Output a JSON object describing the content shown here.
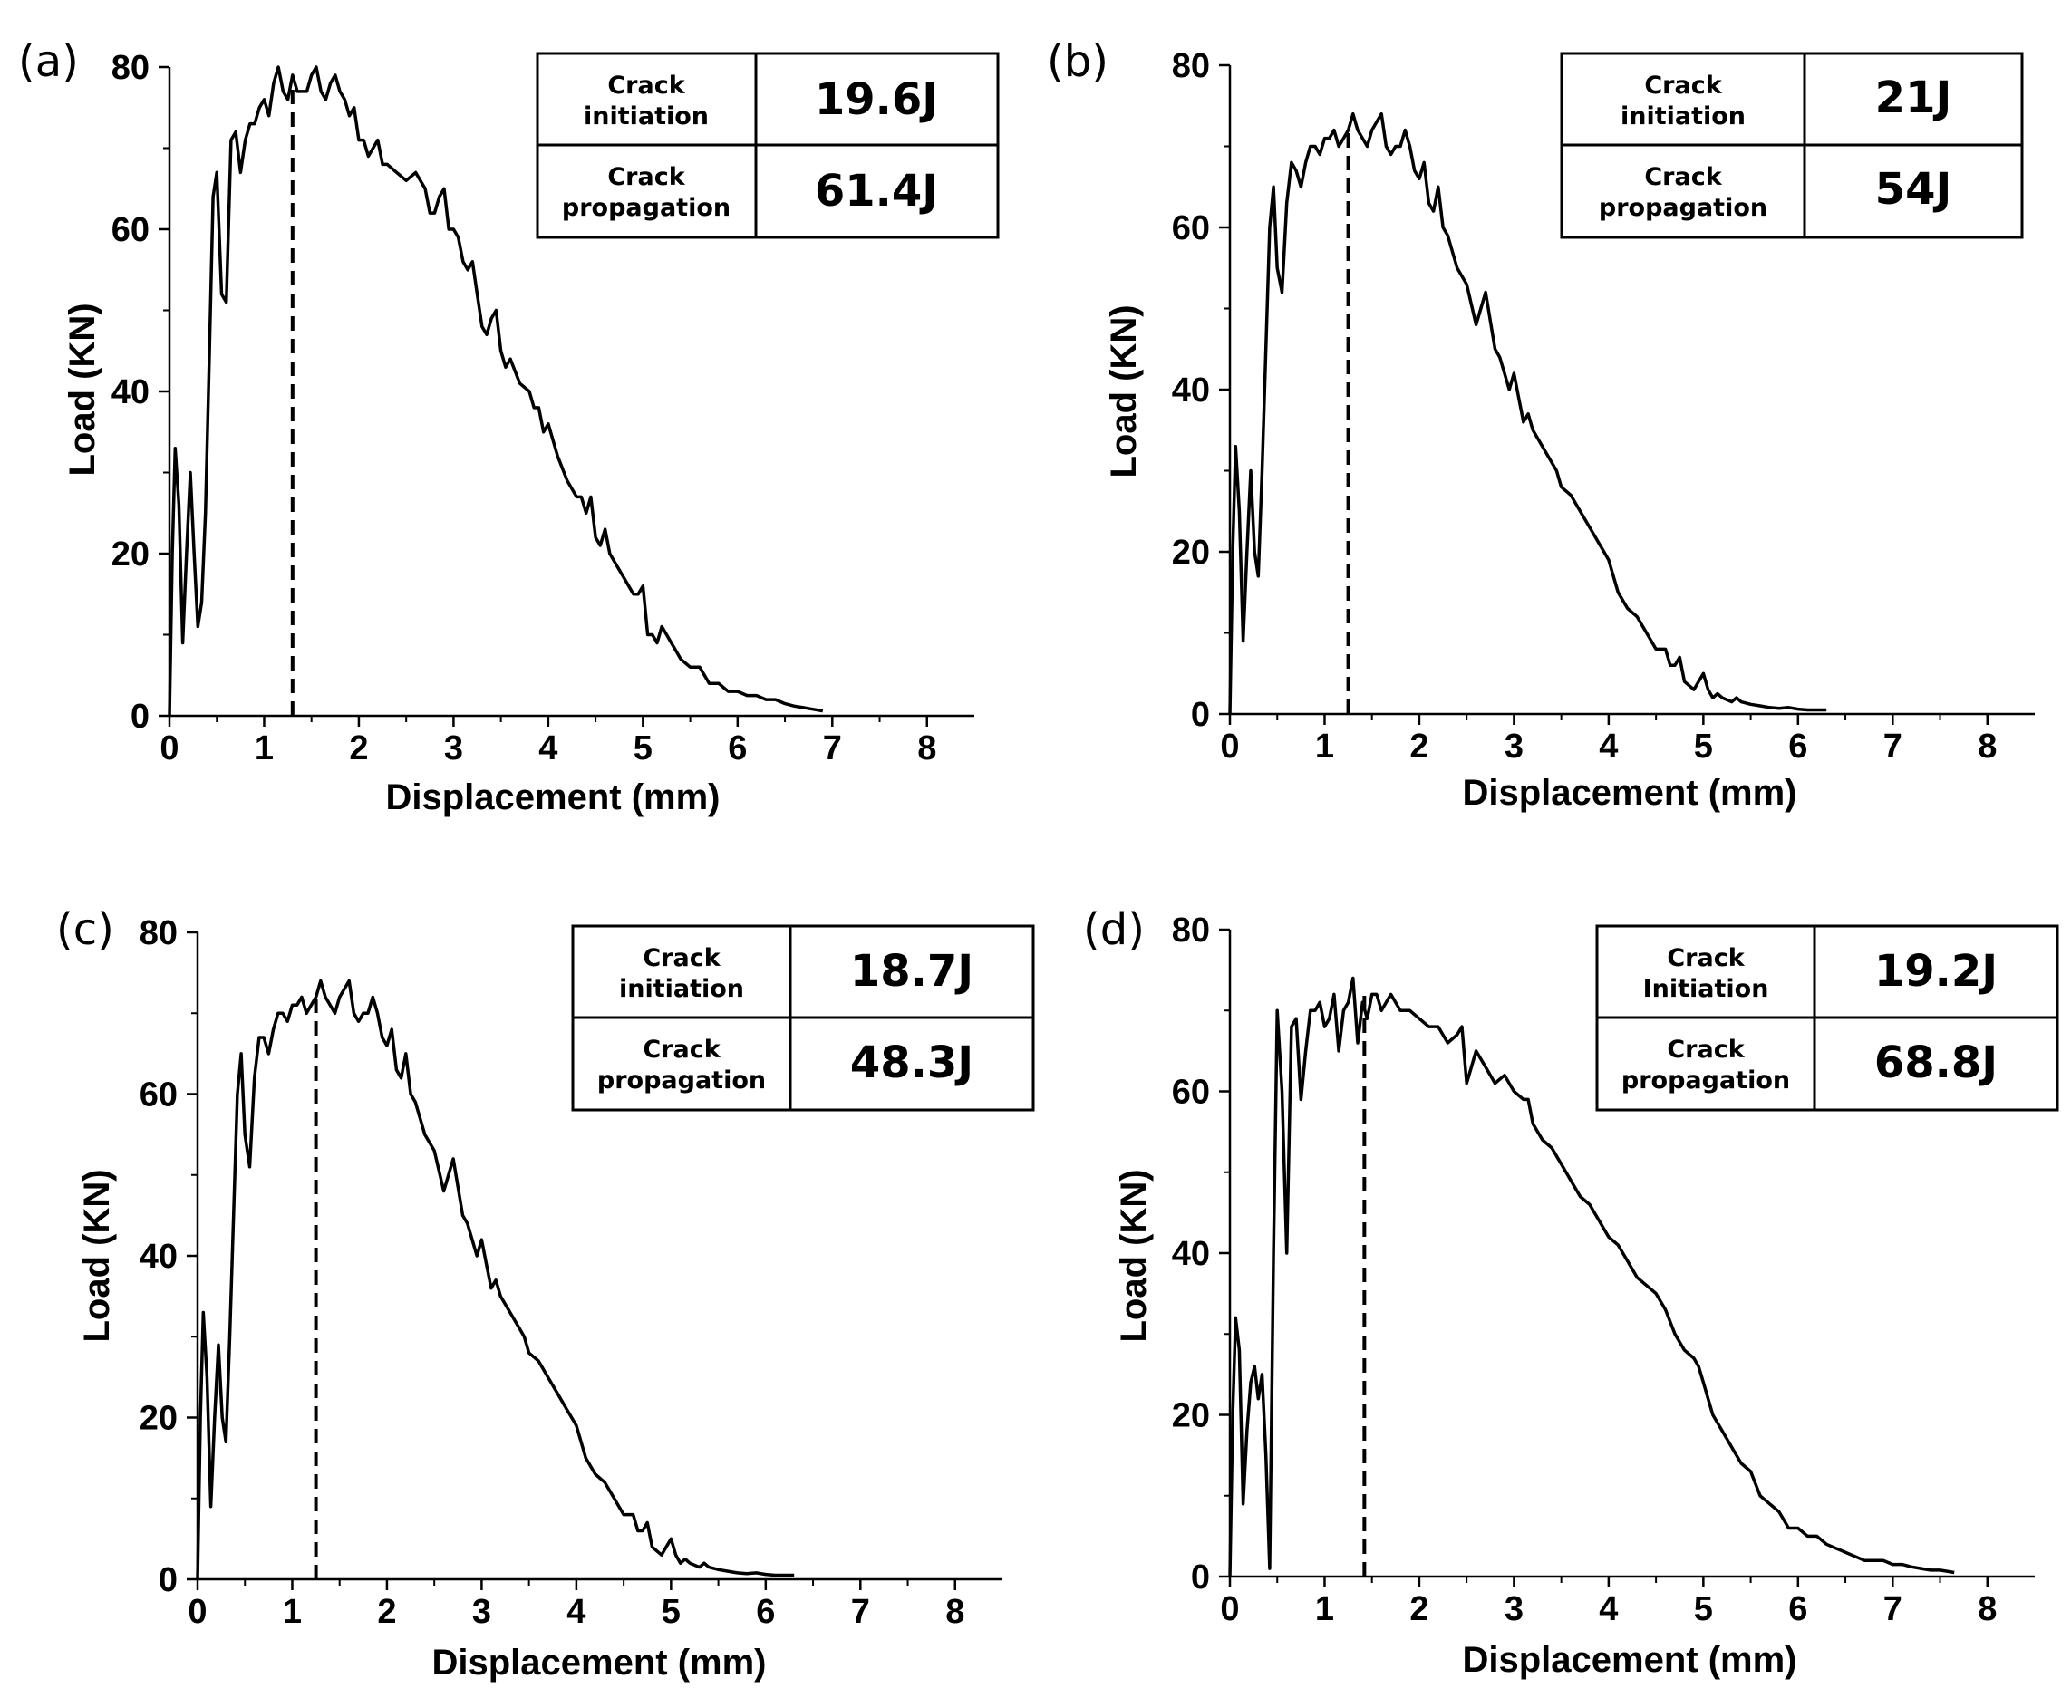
{
  "chart_data": [
    {
      "panel": "(a)",
      "type": "line",
      "xlabel": "Displacement (mm)",
      "ylabel": "Load (KN)",
      "xlim": [
        0,
        8.5
      ],
      "ylim": [
        0,
        80
      ],
      "xticks": [
        0,
        1,
        2,
        3,
        4,
        5,
        6,
        7,
        8
      ],
      "yticks": [
        0,
        20,
        40,
        60,
        80
      ],
      "crack_initiation_displacement": 1.3,
      "table": {
        "row1_label": "Crack initiation",
        "row1_value": "19.6J",
        "row2_label": "Crack propagation",
        "row2_value": "61.4J"
      },
      "series": [
        {
          "name": "Load",
          "x": [
            0,
            0.03,
            0.06,
            0.1,
            0.14,
            0.18,
            0.22,
            0.26,
            0.3,
            0.34,
            0.38,
            0.42,
            0.46,
            0.5,
            0.55,
            0.6,
            0.65,
            0.7,
            0.75,
            0.8,
            0.85,
            0.9,
            0.95,
            1.0,
            1.05,
            1.1,
            1.15,
            1.2,
            1.25,
            1.3,
            1.35,
            1.4,
            1.45,
            1.5,
            1.55,
            1.6,
            1.65,
            1.7,
            1.75,
            1.8,
            1.85,
            1.9,
            1.95,
            2.0,
            2.05,
            2.1,
            2.15,
            2.2,
            2.25,
            2.3,
            2.4,
            2.5,
            2.6,
            2.65,
            2.7,
            2.75,
            2.8,
            2.85,
            2.9,
            2.95,
            3.0,
            3.05,
            3.1,
            3.15,
            3.2,
            3.25,
            3.3,
            3.35,
            3.4,
            3.45,
            3.5,
            3.55,
            3.6,
            3.7,
            3.8,
            3.85,
            3.9,
            3.95,
            4.0,
            4.05,
            4.1,
            4.2,
            4.3,
            4.35,
            4.4,
            4.45,
            4.5,
            4.55,
            4.6,
            4.65,
            4.7,
            4.8,
            4.9,
            4.95,
            5.0,
            5.05,
            5.1,
            5.15,
            5.2,
            5.25,
            5.3,
            5.4,
            5.5,
            5.55,
            5.6,
            5.65,
            5.7,
            5.75,
            5.8,
            5.9,
            6.0,
            6.1,
            6.2,
            6.3,
            6.4,
            6.5,
            6.6,
            6.7,
            6.8,
            6.9
          ],
          "y": [
            0,
            20,
            33,
            26,
            9,
            20,
            30,
            20,
            11,
            14,
            25,
            44,
            64,
            67,
            52,
            51,
            71,
            72,
            67,
            71,
            73,
            73,
            75,
            76,
            74,
            78,
            80,
            77,
            76,
            79,
            77,
            77,
            77,
            79,
            80,
            77,
            76,
            78,
            79,
            77,
            76,
            74,
            75,
            71,
            71,
            69,
            70,
            71,
            68,
            68,
            67,
            66,
            67,
            66,
            65,
            62,
            62,
            64,
            65,
            60,
            60,
            59,
            56,
            55,
            56,
            52,
            48,
            47,
            49,
            50,
            45,
            43,
            44,
            41,
            40,
            38,
            38,
            35,
            36,
            34,
            32,
            29,
            27,
            27,
            25,
            27,
            22,
            21,
            23,
            20,
            19,
            17,
            15,
            15,
            16,
            10,
            10,
            9,
            11,
            10,
            9,
            7,
            6,
            6,
            6,
            5,
            4,
            4,
            4,
            3,
            3,
            2.5,
            2.5,
            2,
            2,
            1.5,
            1.2,
            1,
            0.8,
            0.6
          ]
        }
      ]
    },
    {
      "panel": "(b)",
      "type": "line",
      "xlabel": "Displacement (mm)",
      "ylabel": "Load (KN)",
      "xlim": [
        0,
        8.5
      ],
      "ylim": [
        0,
        80
      ],
      "xticks": [
        0,
        1,
        2,
        3,
        4,
        5,
        6,
        7,
        8
      ],
      "yticks": [
        0,
        20,
        40,
        60,
        80
      ],
      "crack_initiation_displacement": 1.25,
      "table": {
        "row1_label": "Crack initiation",
        "row1_value": "21J",
        "row2_label": "Crack propagation",
        "row2_value": "54J"
      },
      "series": [
        {
          "name": "Load",
          "x": [
            0,
            0.03,
            0.06,
            0.1,
            0.14,
            0.18,
            0.22,
            0.26,
            0.3,
            0.34,
            0.38,
            0.42,
            0.46,
            0.5,
            0.55,
            0.6,
            0.65,
            0.7,
            0.75,
            0.8,
            0.85,
            0.9,
            0.95,
            1.0,
            1.05,
            1.1,
            1.15,
            1.2,
            1.25,
            1.3,
            1.35,
            1.4,
            1.45,
            1.5,
            1.55,
            1.6,
            1.65,
            1.7,
            1.75,
            1.8,
            1.85,
            1.9,
            1.95,
            2.0,
            2.05,
            2.1,
            2.15,
            2.2,
            2.25,
            2.3,
            2.4,
            2.5,
            2.6,
            2.7,
            2.8,
            2.85,
            2.9,
            2.95,
            3.0,
            3.05,
            3.1,
            3.15,
            3.2,
            3.3,
            3.4,
            3.45,
            3.5,
            3.6,
            3.7,
            3.8,
            3.9,
            3.95,
            4.0,
            4.05,
            4.1,
            4.2,
            4.3,
            4.4,
            4.5,
            4.6,
            4.65,
            4.7,
            4.75,
            4.8,
            4.9,
            4.95,
            5.0,
            5.05,
            5.1,
            5.15,
            5.2,
            5.3,
            5.35,
            5.4,
            5.5,
            5.6,
            5.7,
            5.8,
            5.9,
            6.0,
            6.1,
            6.2,
            6.3
          ],
          "y": [
            0,
            20,
            33,
            25,
            9,
            20,
            30,
            20,
            17,
            30,
            45,
            60,
            65,
            55,
            52,
            63,
            68,
            67,
            65,
            68,
            70,
            70,
            69,
            71,
            71,
            72,
            70,
            71,
            72,
            74,
            72,
            71,
            70,
            72,
            73,
            74,
            70,
            69,
            70,
            70,
            72,
            70,
            67,
            66,
            68,
            63,
            62,
            65,
            60,
            59,
            55,
            53,
            48,
            52,
            45,
            44,
            42,
            40,
            42,
            39,
            36,
            37,
            35,
            33,
            31,
            30,
            28,
            27,
            25,
            23,
            21,
            20,
            19,
            17,
            15,
            13,
            12,
            10,
            8,
            8,
            6,
            6,
            7,
            4,
            3,
            4,
            5,
            3,
            2,
            2.5,
            2,
            1.5,
            2,
            1.5,
            1.2,
            1,
            0.8,
            0.7,
            0.8,
            0.6,
            0.5,
            0.5,
            0.5
          ]
        }
      ]
    },
    {
      "panel": "(c)",
      "type": "line",
      "xlabel": "Displacement (mm)",
      "ylabel": "Load (KN)",
      "xlim": [
        0,
        8.5
      ],
      "ylim": [
        0,
        80
      ],
      "xticks": [
        0,
        1,
        2,
        3,
        4,
        5,
        6,
        7,
        8
      ],
      "yticks": [
        0,
        20,
        40,
        60,
        80
      ],
      "crack_initiation_displacement": 1.25,
      "table": {
        "row1_label": "Crack initiation",
        "row1_value": "18.7J",
        "row2_label": "Crack propagation",
        "row2_value": "48.3J"
      },
      "series": [
        {
          "name": "Load",
          "x": [
            0,
            0.03,
            0.06,
            0.1,
            0.14,
            0.18,
            0.22,
            0.26,
            0.3,
            0.34,
            0.38,
            0.42,
            0.46,
            0.5,
            0.55,
            0.6,
            0.65,
            0.7,
            0.75,
            0.8,
            0.85,
            0.9,
            0.95,
            1.0,
            1.05,
            1.1,
            1.15,
            1.2,
            1.25,
            1.3,
            1.35,
            1.4,
            1.45,
            1.5,
            1.55,
            1.6,
            1.65,
            1.7,
            1.75,
            1.8,
            1.85,
            1.9,
            1.95,
            2.0,
            2.05,
            2.1,
            2.15,
            2.2,
            2.25,
            2.3,
            2.4,
            2.5,
            2.6,
            2.7,
            2.8,
            2.85,
            2.9,
            2.95,
            3.0,
            3.05,
            3.1,
            3.15,
            3.2,
            3.3,
            3.4,
            3.45,
            3.5,
            3.6,
            3.7,
            3.8,
            3.9,
            3.95,
            4.0,
            4.05,
            4.1,
            4.2,
            4.3,
            4.4,
            4.5,
            4.6,
            4.65,
            4.7,
            4.75,
            4.8,
            4.9,
            4.95,
            5.0,
            5.05,
            5.1,
            5.15,
            5.2,
            5.3,
            5.35,
            5.4,
            5.5,
            5.6,
            5.7,
            5.8,
            5.9,
            6.0,
            6.1,
            6.2,
            6.3
          ],
          "y": [
            0,
            20,
            33,
            25,
            9,
            20,
            29,
            20,
            17,
            30,
            45,
            60,
            65,
            55,
            51,
            62,
            67,
            67,
            65,
            68,
            70,
            70,
            69,
            71,
            71,
            72,
            70,
            71,
            72,
            74,
            72,
            71,
            70,
            72,
            73,
            74,
            70,
            69,
            70,
            70,
            72,
            70,
            67,
            66,
            68,
            63,
            62,
            65,
            60,
            59,
            55,
            53,
            48,
            52,
            45,
            44,
            42,
            40,
            42,
            39,
            36,
            37,
            35,
            33,
            31,
            30,
            28,
            27,
            25,
            23,
            21,
            20,
            19,
            17,
            15,
            13,
            12,
            10,
            8,
            8,
            6,
            6,
            7,
            4,
            3,
            4,
            5,
            3,
            2,
            2.5,
            2,
            1.5,
            2,
            1.5,
            1.2,
            1,
            0.8,
            0.7,
            0.8,
            0.6,
            0.5,
            0.5,
            0.5
          ]
        }
      ]
    },
    {
      "panel": "(d)",
      "type": "line",
      "xlabel": "Displacement (mm)",
      "ylabel": "Load (KN)",
      "xlim": [
        0,
        8.5
      ],
      "ylim": [
        0,
        80
      ],
      "xticks": [
        0,
        1,
        2,
        3,
        4,
        5,
        6,
        7,
        8
      ],
      "yticks": [
        0,
        20,
        40,
        60,
        80
      ],
      "crack_initiation_displacement": 1.42,
      "table": {
        "row1_label": "Crack Initiation",
        "row1_value": "19.2J",
        "row2_label": "Crack propagation",
        "row2_value": "68.8J"
      },
      "series": [
        {
          "name": "Load",
          "x": [
            0,
            0.03,
            0.06,
            0.1,
            0.14,
            0.18,
            0.22,
            0.26,
            0.3,
            0.34,
            0.38,
            0.42,
            0.46,
            0.5,
            0.55,
            0.6,
            0.65,
            0.7,
            0.75,
            0.8,
            0.85,
            0.9,
            0.95,
            1.0,
            1.05,
            1.1,
            1.15,
            1.2,
            1.25,
            1.3,
            1.35,
            1.4,
            1.45,
            1.5,
            1.55,
            1.6,
            1.7,
            1.8,
            1.9,
            2.0,
            2.1,
            2.2,
            2.3,
            2.4,
            2.45,
            2.5,
            2.55,
            2.6,
            2.7,
            2.8,
            2.9,
            3.0,
            3.1,
            3.15,
            3.2,
            3.3,
            3.4,
            3.5,
            3.6,
            3.7,
            3.8,
            3.9,
            4.0,
            4.1,
            4.2,
            4.3,
            4.4,
            4.5,
            4.6,
            4.7,
            4.8,
            4.9,
            4.95,
            5.0,
            5.05,
            5.1,
            5.2,
            5.3,
            5.4,
            5.5,
            5.6,
            5.7,
            5.8,
            5.85,
            5.9,
            6.0,
            6.1,
            6.2,
            6.3,
            6.4,
            6.5,
            6.6,
            6.7,
            6.8,
            6.9,
            7.0,
            7.1,
            7.2,
            7.3,
            7.4,
            7.5,
            7.6,
            7.65
          ],
          "y": [
            0,
            20,
            32,
            28,
            9,
            18,
            24,
            26,
            22,
            25,
            15,
            1,
            40,
            70,
            60,
            40,
            68,
            69,
            59,
            65,
            70,
            70,
            71,
            68,
            69,
            72,
            65,
            70,
            71,
            74,
            66,
            71,
            69,
            72,
            72,
            70,
            72,
            70,
            70,
            69,
            68,
            68,
            66,
            67,
            68,
            61,
            63,
            65,
            63,
            61,
            62,
            60,
            59,
            59,
            56,
            54,
            53,
            51,
            49,
            47,
            46,
            44,
            42,
            41,
            39,
            37,
            36,
            35,
            33,
            30,
            28,
            27,
            26,
            24,
            22,
            20,
            18,
            16,
            14,
            13,
            10,
            9,
            8,
            7,
            6,
            6,
            5,
            5,
            4,
            3.5,
            3,
            2.5,
            2,
            2,
            2,
            1.5,
            1.5,
            1.2,
            1,
            0.8,
            0.8,
            0.6,
            0.5
          ]
        }
      ]
    }
  ]
}
